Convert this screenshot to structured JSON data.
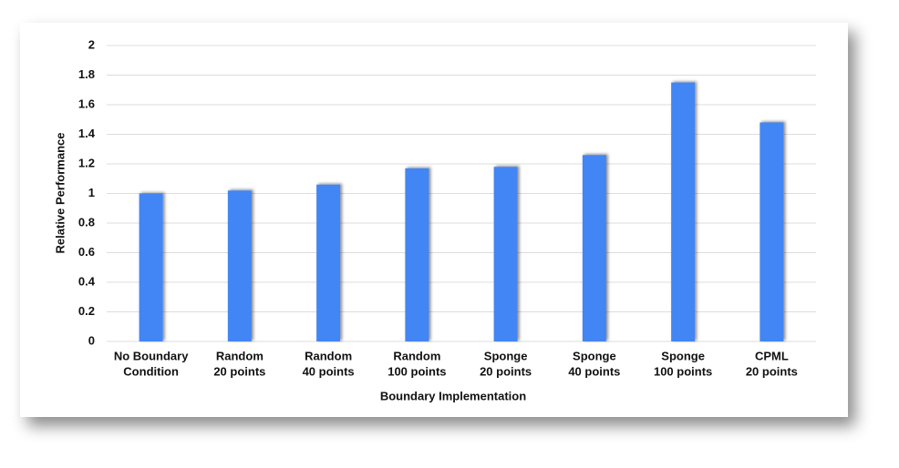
{
  "chart_data": {
    "type": "bar",
    "x_label": "Boundary Implementation",
    "y_label": "Relative Performance",
    "categories": [
      [
        "No Boundary",
        "Condition"
      ],
      [
        "Random",
        "20 points"
      ],
      [
        "Random",
        "40 points"
      ],
      [
        "Random",
        "100 points"
      ],
      [
        "Sponge",
        "20 points"
      ],
      [
        "Sponge",
        "40 points"
      ],
      [
        "Sponge",
        "100 points"
      ],
      [
        "CPML",
        "20 points"
      ]
    ],
    "values": [
      1.0,
      1.02,
      1.06,
      1.17,
      1.18,
      1.26,
      1.75,
      1.48
    ],
    "color": "#4285f4",
    "ylim": [
      0,
      2
    ],
    "yticks": [
      0,
      0.2,
      0.4,
      0.6,
      0.8,
      1,
      1.2,
      1.4,
      1.6,
      1.8,
      2
    ],
    "grid": true
  }
}
